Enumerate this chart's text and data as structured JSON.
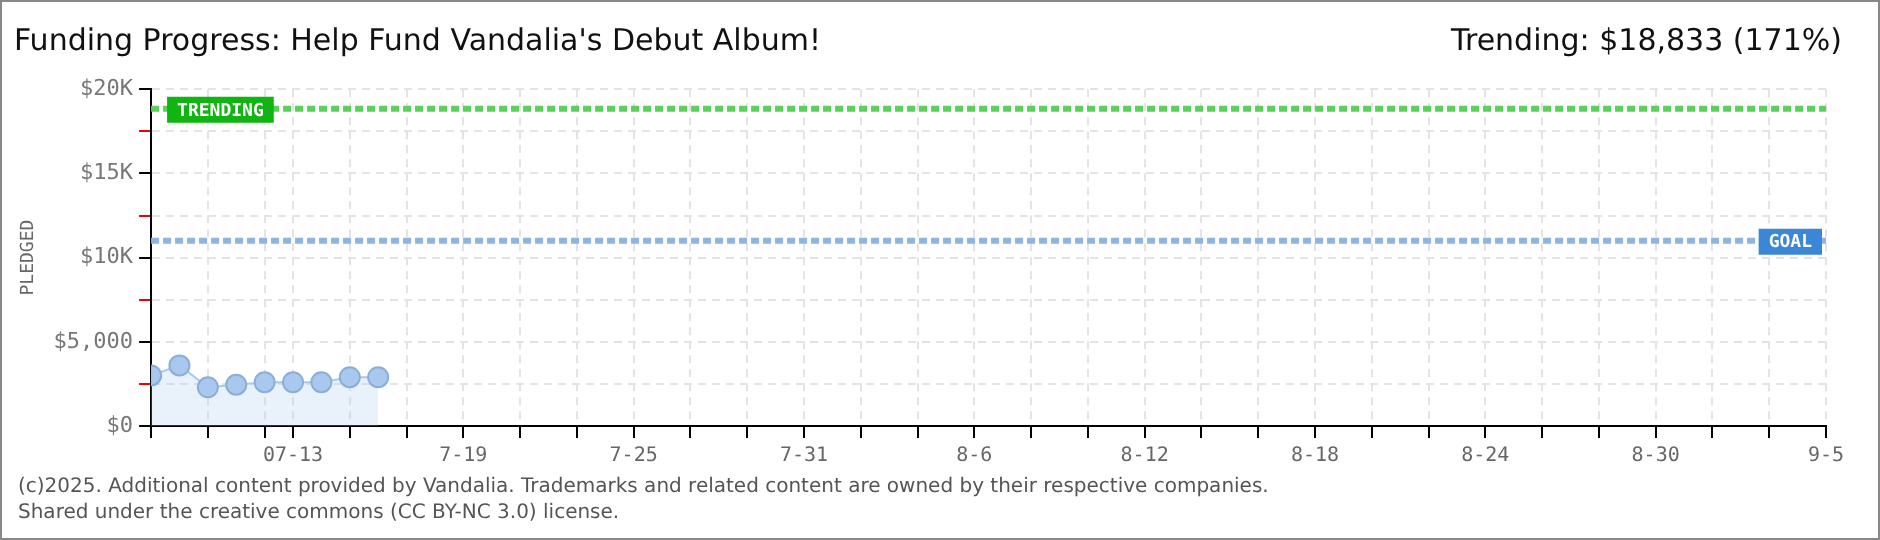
{
  "chart_data": {
    "type": "area",
    "title": "Funding Progress: Help Fund Vandalia's Debut Album!",
    "subtitle": "Trending: $18,833 (171%)",
    "ylabel": "PLEDGED",
    "x": [
      "--07-08",
      "--07-09",
      "--07-10",
      "--07-11",
      "--07-12",
      "--07-13",
      "--07-14",
      "--07-15",
      "--07-16"
    ],
    "series": [
      {
        "color": "#a9c8ee",
        "values": [
          3000,
          3600,
          2300,
          2450,
          2600,
          2600,
          2600,
          2900,
          2900
        ]
      }
    ],
    "marker": "circle",
    "grid": true,
    "xlim": [
      "--07-08",
      "--09-05"
    ],
    "xticks": [
      {
        "value": "--07-08",
        "label": null
      },
      {
        "value": "--07-10",
        "label": null
      },
      {
        "value": "--07-12",
        "label": null
      },
      {
        "value": "--07-13",
        "label": "07-13"
      },
      {
        "value": "--07-15",
        "label": null
      },
      {
        "value": "--07-17",
        "label": null
      },
      {
        "value": "--07-19",
        "label": "7-19"
      },
      {
        "value": "--07-21",
        "label": null
      },
      {
        "value": "--07-23",
        "label": null
      },
      {
        "value": "--07-25",
        "label": "7-25"
      },
      {
        "value": "--07-27",
        "label": null
      },
      {
        "value": "--07-29",
        "label": null
      },
      {
        "value": "--07-31",
        "label": "7-31"
      },
      {
        "value": "--08-02",
        "label": null
      },
      {
        "value": "--08-04",
        "label": null
      },
      {
        "value": "--08-06",
        "label": "8-6"
      },
      {
        "value": "--08-08",
        "label": null
      },
      {
        "value": "--08-10",
        "label": null
      },
      {
        "value": "--08-12",
        "label": "8-12"
      },
      {
        "value": "--08-14",
        "label": null
      },
      {
        "value": "--08-16",
        "label": null
      },
      {
        "value": "--08-18",
        "label": "8-18"
      },
      {
        "value": "--08-20",
        "label": null
      },
      {
        "value": "--08-22",
        "label": null
      },
      {
        "value": "--08-24",
        "label": "8-24"
      },
      {
        "value": "--08-26",
        "label": null
      },
      {
        "value": "--08-28",
        "label": null
      },
      {
        "value": "--08-30",
        "label": "8-30"
      },
      {
        "value": "--09-01",
        "label": null
      },
      {
        "value": "--09-03",
        "label": null
      },
      {
        "value": "--09-05",
        "label": "9-5"
      }
    ],
    "ylim": [
      0,
      20000
    ],
    "yticks": [
      {
        "value": 0,
        "label": "$0"
      },
      {
        "value": 2500,
        "label": null
      },
      {
        "value": 5000,
        "label": "$5,000"
      },
      {
        "value": 7500,
        "label": null
      },
      {
        "value": 10000,
        "label": "$10K"
      },
      {
        "value": 12500,
        "label": null
      },
      {
        "value": 15000,
        "label": "$15K"
      },
      {
        "value": 17500,
        "label": null
      },
      {
        "value": 20000,
        "label": "$20K"
      }
    ],
    "ref_lines": [
      {
        "axis": "y",
        "value": 18833,
        "label": "TRENDING",
        "color": "#5ad25a",
        "line_style": "dashed"
      },
      {
        "axis": "y",
        "value": 11000,
        "label": "GOAL",
        "color": "#8fb4e3",
        "line_style": "dashed"
      }
    ],
    "annotations": [
      "(c)2025. Additional content provided by Vandalia. Trademarks and related content are owned by their respective companies.",
      "Shared under the creative commons (CC BY-NC 3.0) license."
    ]
  }
}
